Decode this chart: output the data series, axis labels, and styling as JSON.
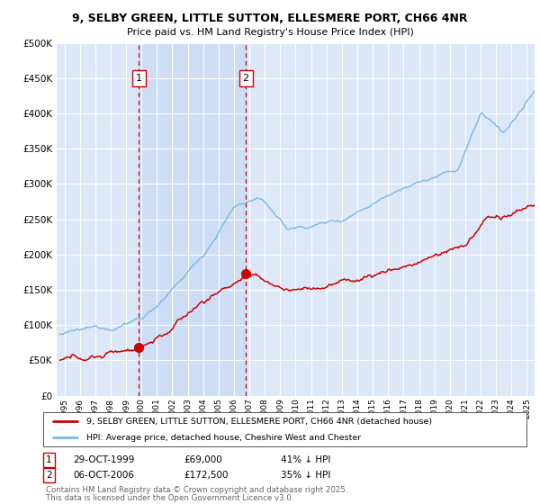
{
  "title_line1": "9, SELBY GREEN, LITTLE SUTTON, ELLESMERE PORT, CH66 4NR",
  "title_line2": "Price paid vs. HM Land Registry's House Price Index (HPI)",
  "ylim": [
    0,
    500000
  ],
  "xlim_start": 1994.5,
  "xlim_end": 2025.5,
  "background_color": "#dce8f8",
  "grid_color": "#ffffff",
  "shade_color": "#ccddf5",
  "sale1_price": 69000,
  "sale1_x": 1999.83,
  "sale2_price": 172500,
  "sale2_x": 2006.77,
  "property_line_color": "#cc0000",
  "hpi_line_color": "#7db8e0",
  "legend_label1": "9, SELBY GREEN, LITTLE SUTTON, ELLESMERE PORT, CH66 4NR (detached house)",
  "legend_label2": "HPI: Average price, detached house, Cheshire West and Chester",
  "footer_line1": "Contains HM Land Registry data © Crown copyright and database right 2025.",
  "footer_line2": "This data is licensed under the Open Government Licence v3.0."
}
